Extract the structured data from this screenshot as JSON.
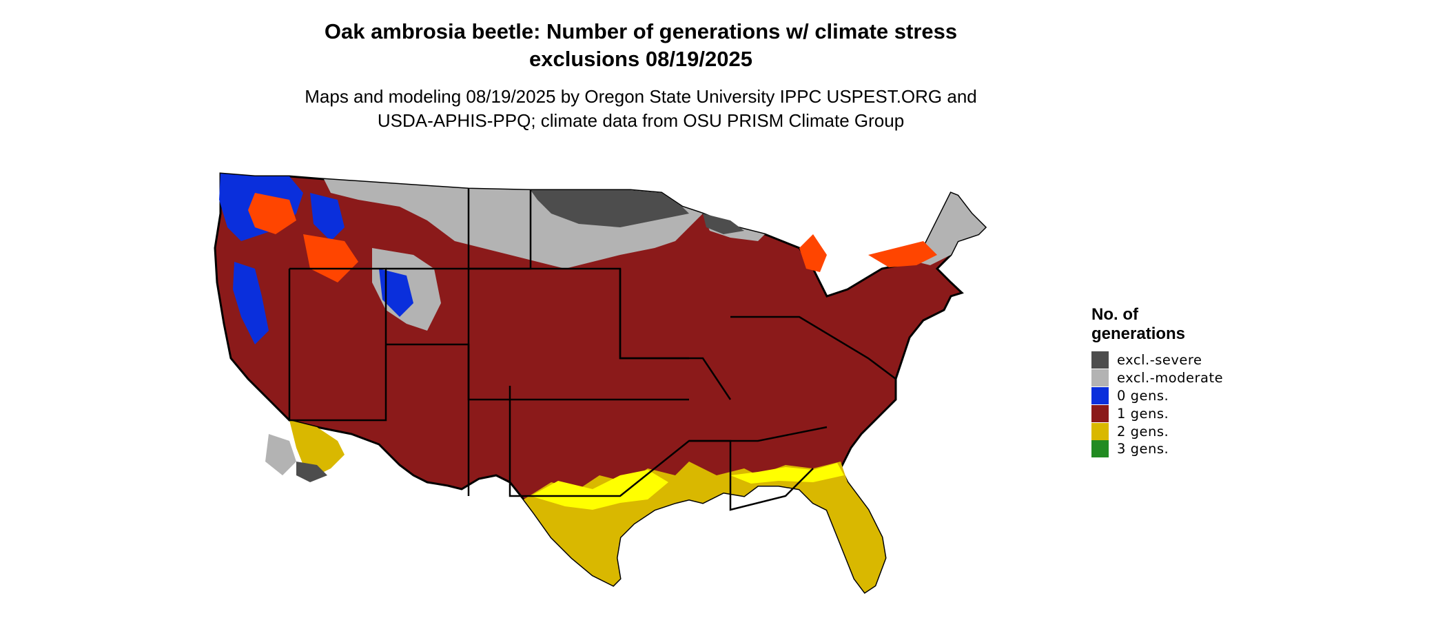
{
  "title_line1": "Oak ambrosia beetle: Number of generations w/ climate stress",
  "title_line2": "exclusions 08/19/2025",
  "subtitle_line1": "Maps and modeling 08/19/2025 by Oregon State University IPPC USPEST.ORG and",
  "subtitle_line2": "USDA-APHIS-PPQ; climate data from OSU PRISM Climate Group",
  "legend": {
    "title_line1": "No. of",
    "title_line2": "generations",
    "items": [
      {
        "label": "excl.-severe",
        "color": "#4d4d4d"
      },
      {
        "label": "excl.-moderate",
        "color": "#b3b3b3"
      },
      {
        "label": "0 gens.",
        "color": "#0a2fdc"
      },
      {
        "label": "1 gens.",
        "color": "#8b1a1a"
      },
      {
        "label": "2 gens.",
        "color": "#d9b800"
      },
      {
        "label": "3 gens.",
        "color": "#228b22"
      }
    ]
  },
  "colors": {
    "excl_severe": "#4d4d4d",
    "excl_moderate": "#b3b3b3",
    "gen0": "#0a2fdc",
    "gen1": "#8b1a1a",
    "gen1_transition": "#ff4500",
    "gen2": "#d9b800",
    "gen2_light": "#ffff00",
    "border": "#000000"
  }
}
